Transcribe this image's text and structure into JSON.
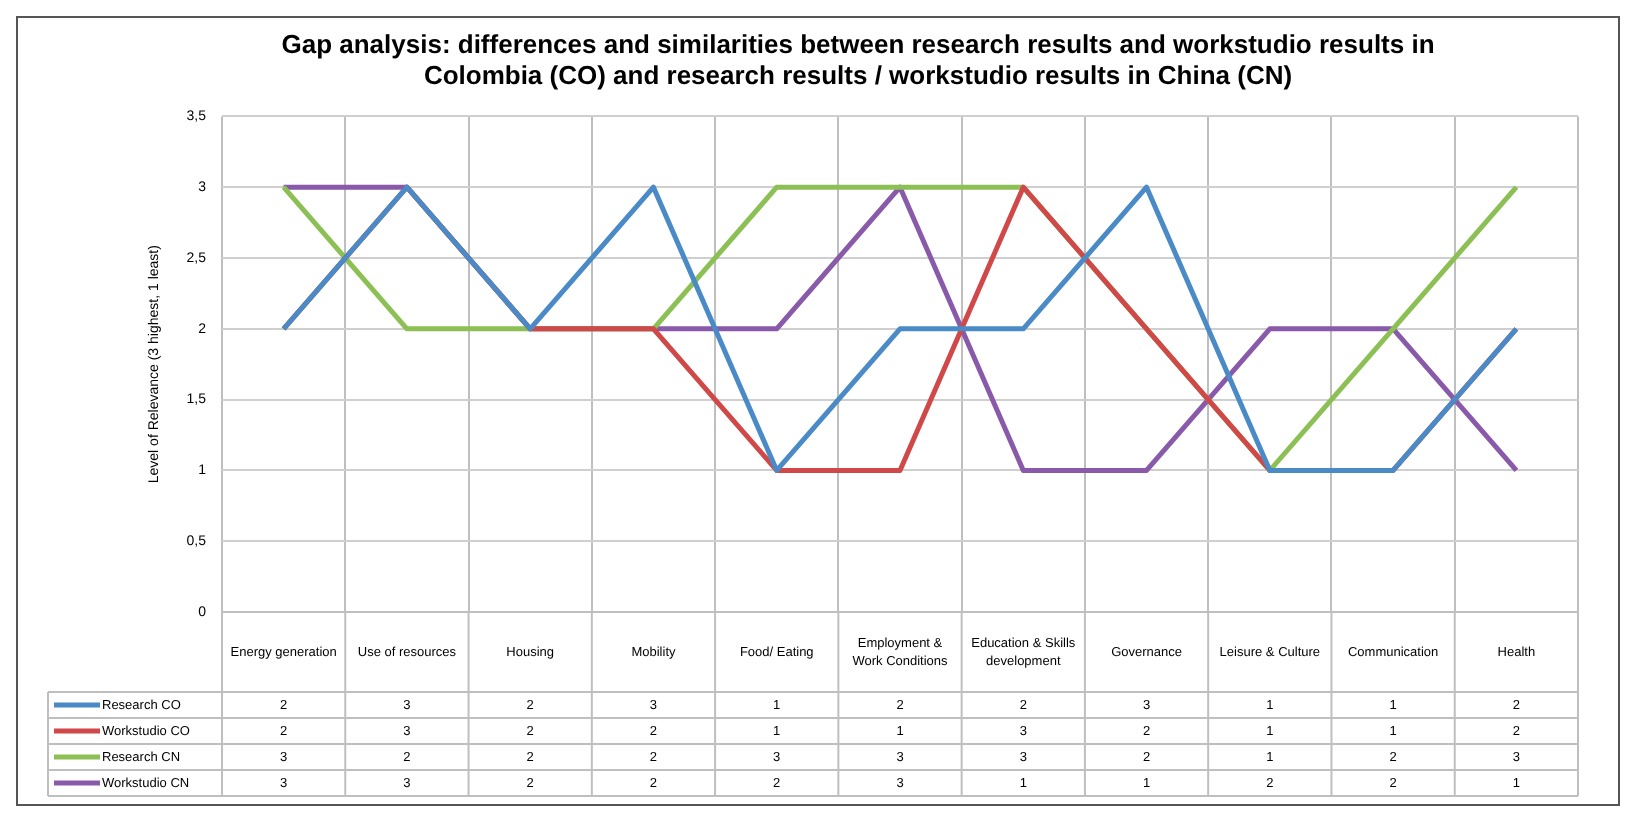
{
  "chart_data": {
    "type": "line",
    "title": "Gap analysis: differences and similarities between research results and workstudio results in Colombia (CO) and research results / workstudio results in China (CN)",
    "ylabel": "Level of Relevance (3 highest, 1 least)",
    "categories": [
      "Energy generation",
      "Use of resources",
      "Housing",
      "Mobility",
      "Food/ Eating",
      "Employment & Work Conditions",
      "Education & Skills development",
      "Governance",
      "Leisure & Culture",
      "Communication",
      "Health"
    ],
    "series": [
      {
        "name": "Research CO",
        "color": "#4a8ac6",
        "values": [
          2,
          3,
          2,
          3,
          1,
          2,
          2,
          3,
          1,
          1,
          2
        ]
      },
      {
        "name": "Workstudio CO",
        "color": "#d04848",
        "values": [
          2,
          3,
          2,
          2,
          1,
          1,
          3,
          2,
          1,
          1,
          2
        ]
      },
      {
        "name": "Research CN",
        "color": "#8cc055",
        "values": [
          3,
          2,
          2,
          2,
          3,
          3,
          3,
          2,
          1,
          2,
          3
        ]
      },
      {
        "name": "Workstudio CN",
        "color": "#8a5aaa",
        "values": [
          3,
          3,
          2,
          2,
          2,
          3,
          1,
          1,
          2,
          2,
          1
        ]
      }
    ],
    "ylim": [
      0,
      3.5
    ],
    "yticks": [
      0,
      {
        "value": 0.5,
        "label": "0,5"
      },
      1,
      {
        "value": 1.5,
        "label": "1,5"
      },
      2,
      {
        "value": 2.5,
        "label": "2,5"
      },
      3,
      {
        "value": 3.5,
        "label": "3,5"
      }
    ],
    "grid": true,
    "legend": "bottom",
    "data_labels": true,
    "marker": "none",
    "line_style": "solid"
  }
}
